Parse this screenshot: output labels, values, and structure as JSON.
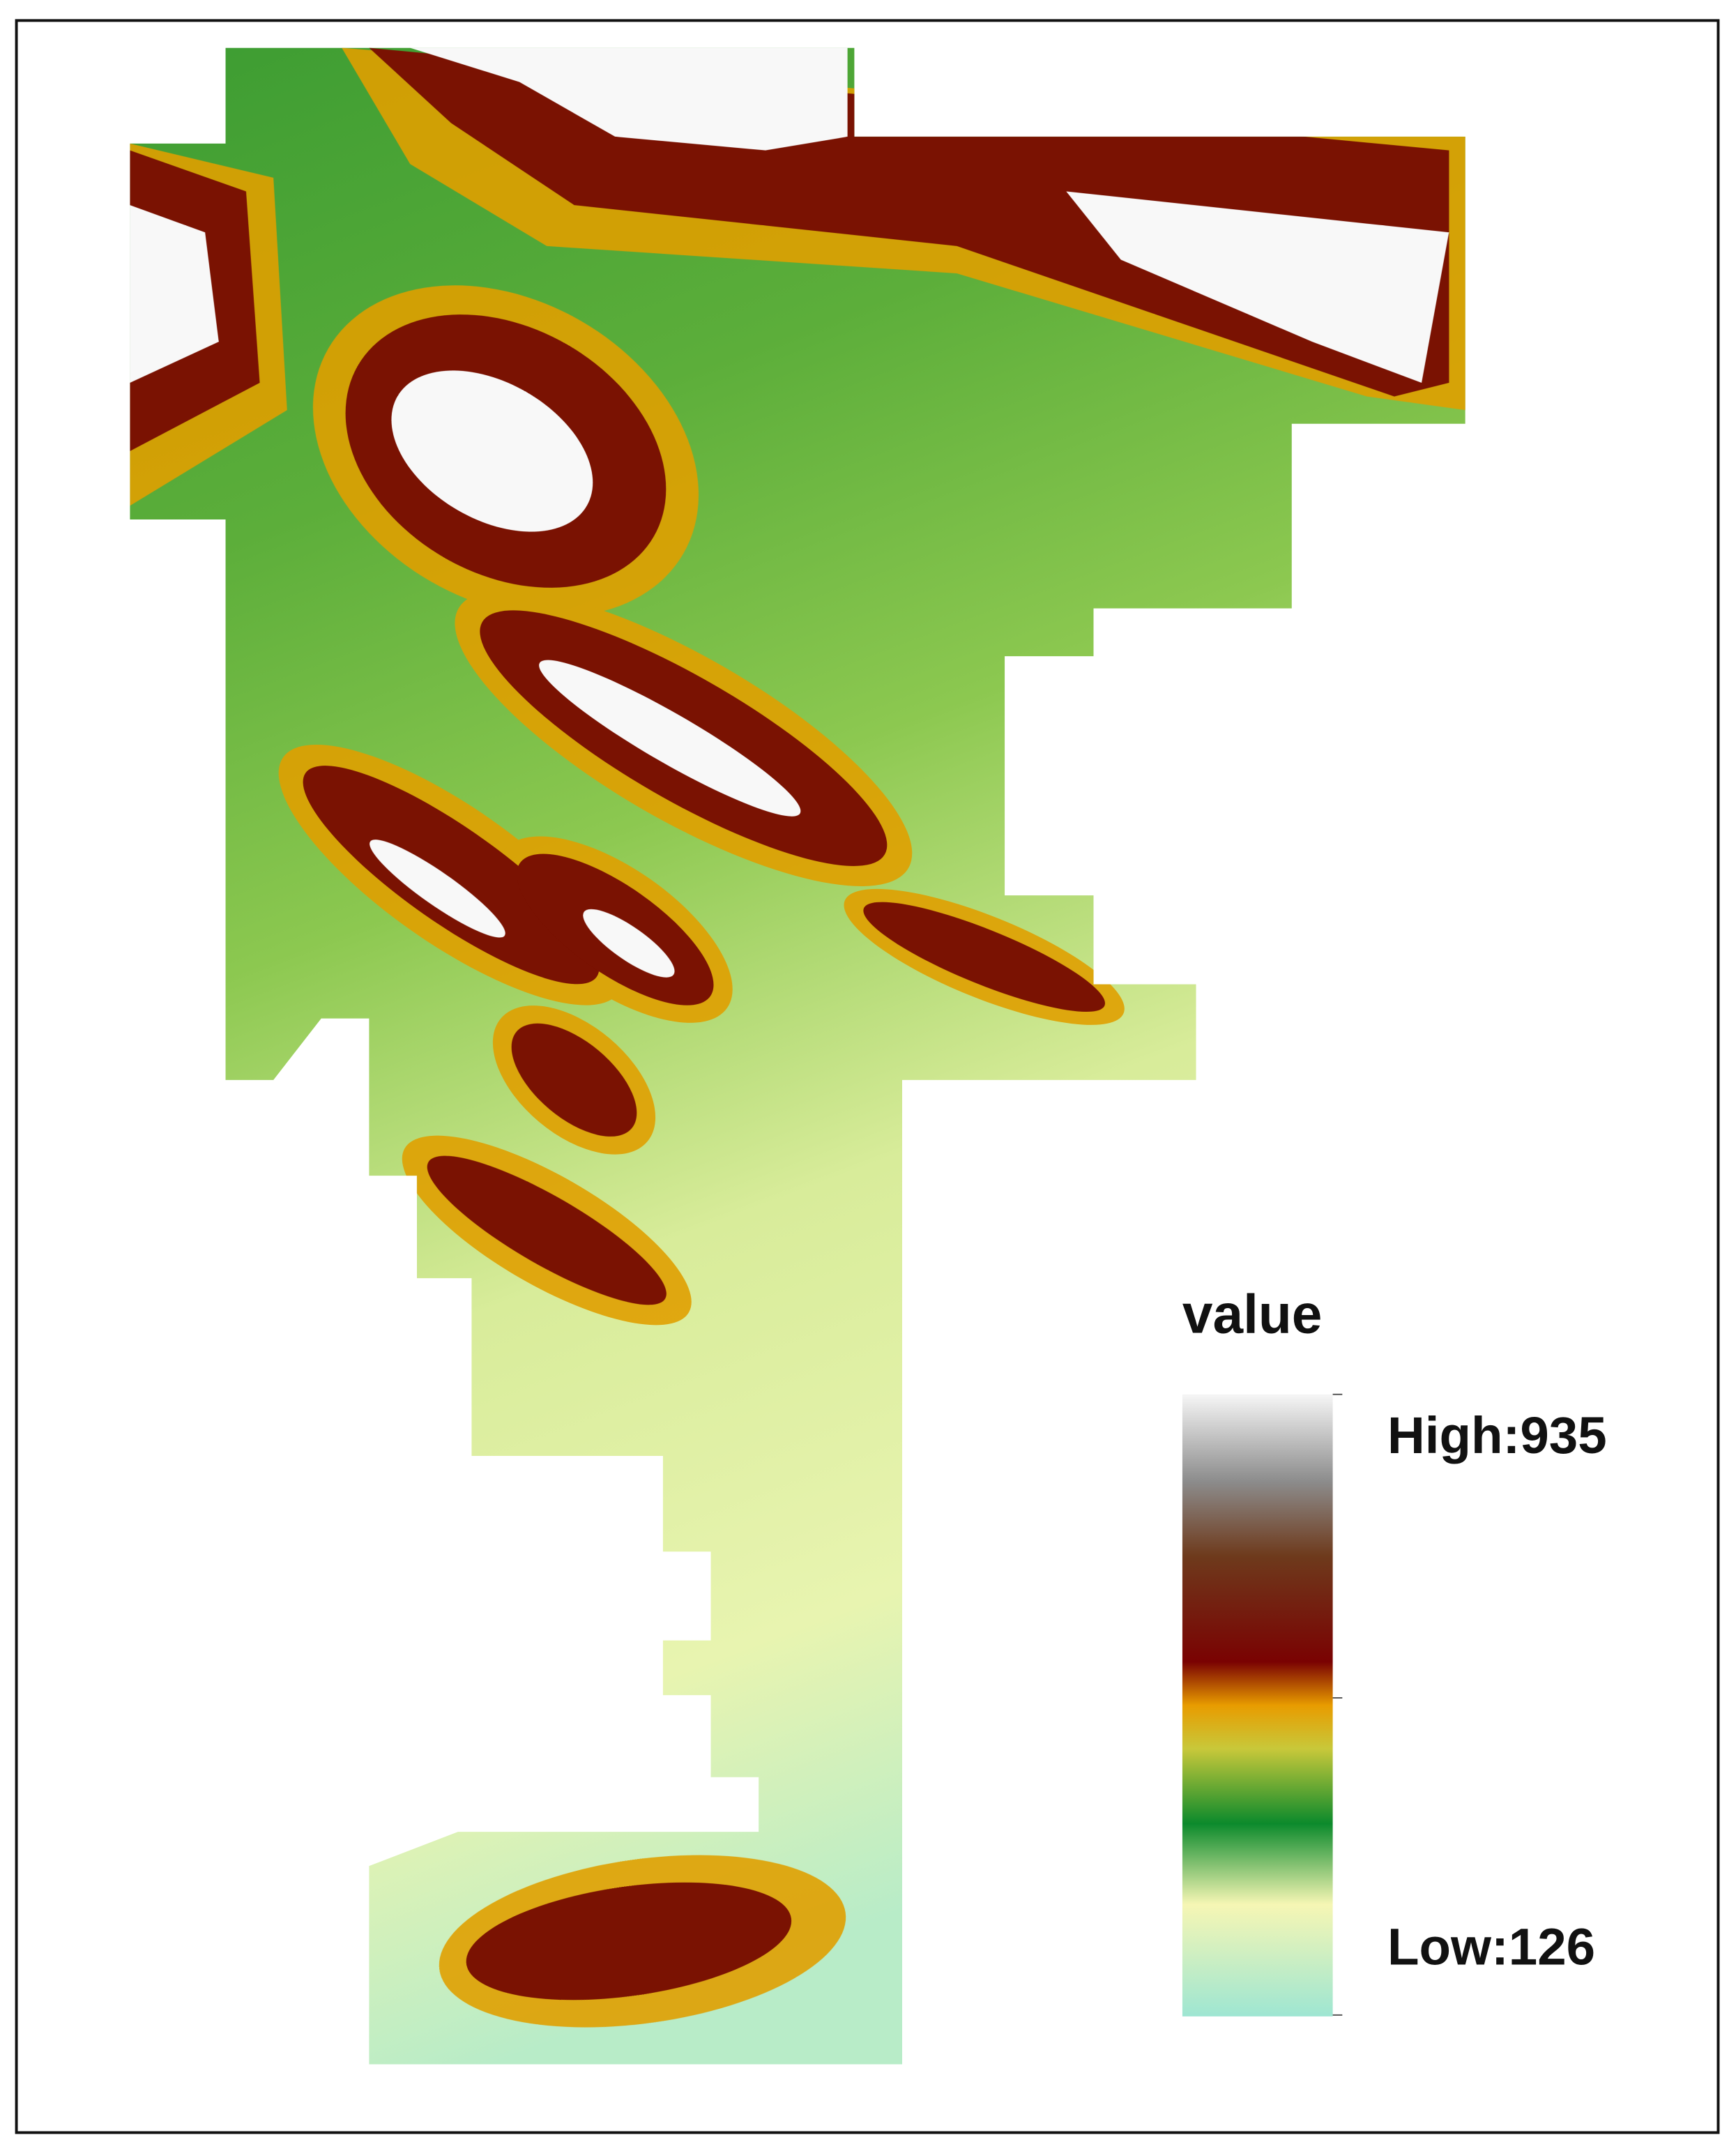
{
  "legend": {
    "title": "value",
    "high": "High:935",
    "low": "Low:126"
  }
}
